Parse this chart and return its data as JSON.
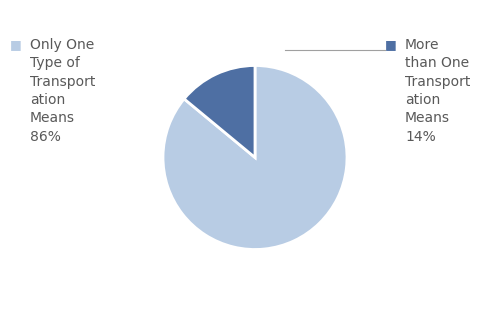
{
  "values": [
    86,
    14
  ],
  "colors": [
    "#b8cce4",
    "#4e6fa3"
  ],
  "left_legend_label": "Only One\nType of\nTransport\nation\nMeans\n86%",
  "right_legend_label": "More\nthan One\nTransport\nation\nMeans\n14%",
  "left_legend_color": "#b8cce4",
  "right_legend_color": "#4e6fa3",
  "startangle": 90,
  "background_color": "#ffffff",
  "wedge_edge_color": "#ffffff",
  "wedge_linewidth": 2.0,
  "text_color": "#595959",
  "fontsize": 10
}
